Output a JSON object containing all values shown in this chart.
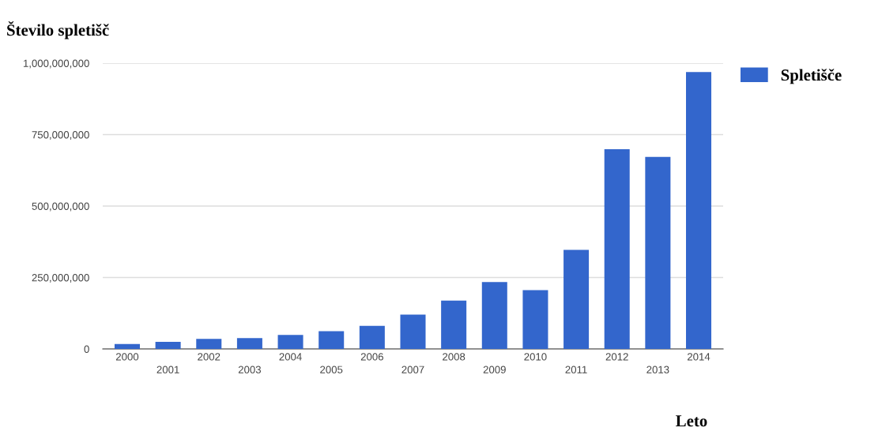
{
  "chart_data": {
    "type": "bar",
    "title": "Število spletišč",
    "xlabel": "Leto",
    "categories": [
      "2000",
      "2001",
      "2002",
      "2003",
      "2004",
      "2005",
      "2006",
      "2007",
      "2008",
      "2009",
      "2010",
      "2011",
      "2012",
      "2013",
      "2014"
    ],
    "series": [
      {
        "name": "Spletišče",
        "color": "#3366cc",
        "values": [
          17000000,
          25000000,
          35000000,
          38000000,
          49000000,
          62000000,
          81000000,
          120000000,
          169000000,
          234000000,
          206000000,
          347000000,
          699000000,
          672000000,
          969000000
        ]
      }
    ],
    "ylim": [
      0,
      1000000000
    ],
    "yticks": [
      {
        "value": 0,
        "label": "0"
      },
      {
        "value": 250000000,
        "label": "250,000,000"
      },
      {
        "value": 500000000,
        "label": "500,000,000"
      },
      {
        "value": 750000000,
        "label": "750,000,000"
      },
      {
        "value": 1000000000,
        "label": "1,000,000,000"
      }
    ],
    "grid": "y",
    "legend": "top right"
  }
}
